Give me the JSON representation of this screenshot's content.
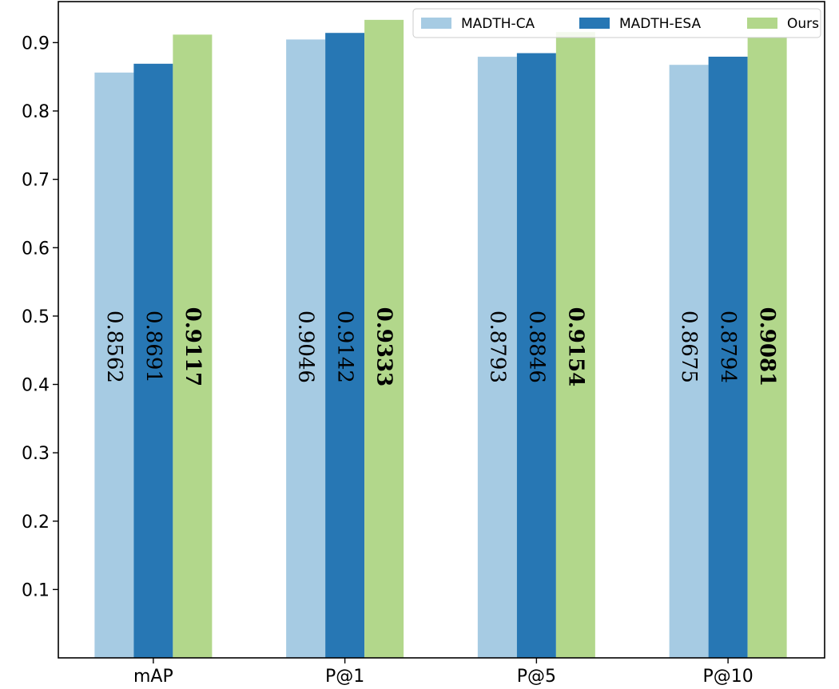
{
  "chart_data": {
    "type": "bar",
    "title": "",
    "xlabel": "",
    "ylabel": "",
    "categories": [
      "mAP",
      "P@1",
      "P@5",
      "P@10"
    ],
    "ylim": [
      0,
      0.96
    ],
    "yticks": [
      0.1,
      0.2,
      0.3,
      0.4,
      0.5,
      0.6,
      0.7,
      0.8,
      0.9
    ],
    "ytick_labels": [
      "0.1",
      "0.2",
      "0.3",
      "0.4",
      "0.5",
      "0.6",
      "0.7",
      "0.8",
      "0.9"
    ],
    "grid": false,
    "legend_position": "top-right",
    "series": [
      {
        "name": "MADTH-CA",
        "color": "#a6cbe3",
        "bold_labels": false,
        "values": [
          0.8562,
          0.9046,
          0.8793,
          0.8675
        ],
        "labels": [
          "0.8562",
          "0.9046",
          "0.8793",
          "0.8675"
        ]
      },
      {
        "name": "MADTH-ESA",
        "color": "#2777b4",
        "bold_labels": false,
        "values": [
          0.8691,
          0.9142,
          0.8846,
          0.8794
        ],
        "labels": [
          "0.8691",
          "0.9142",
          "0.8846",
          "0.8794"
        ]
      },
      {
        "name": "Ours",
        "color": "#b2d78b",
        "bold_labels": true,
        "values": [
          0.9117,
          0.9333,
          0.9154,
          0.9081
        ],
        "labels": [
          "0.9117",
          "0.9333",
          "0.9154",
          "0.9081"
        ]
      }
    ]
  }
}
